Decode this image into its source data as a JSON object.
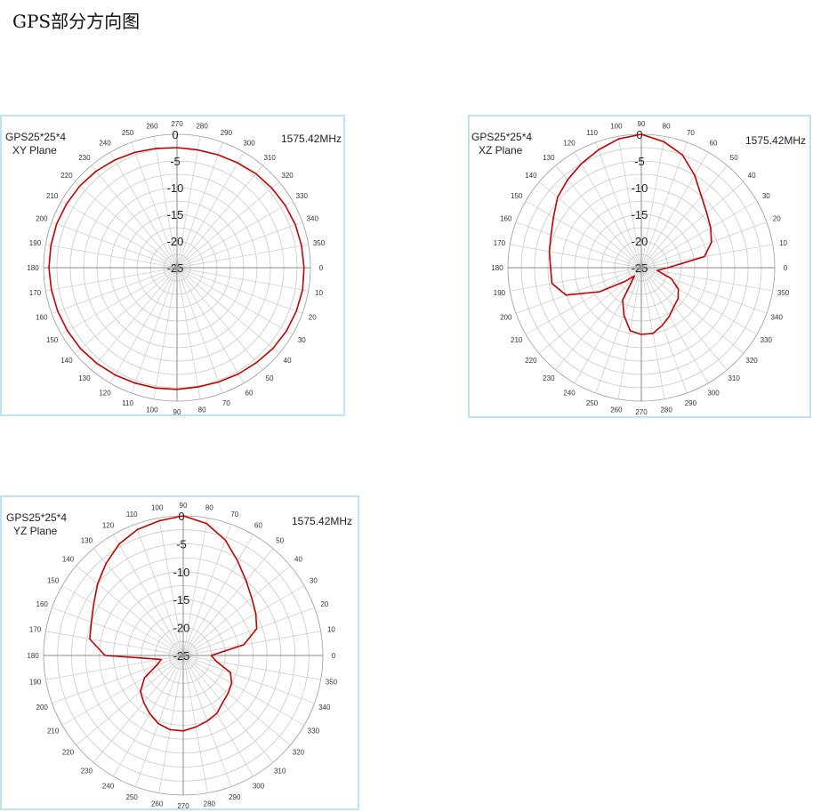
{
  "page_title": "GPS部分方向图",
  "chart_data": [
    {
      "type": "polar",
      "antenna": "GPS25*25*4",
      "plane": "XY Plane",
      "frequency": "1575.42MHz",
      "r_ticks": [
        "0",
        "-5",
        "-10",
        "-15",
        "-20",
        "-25"
      ],
      "r_lim": [
        -25,
        0
      ],
      "theta_ticks": [
        0,
        10,
        20,
        30,
        40,
        50,
        60,
        70,
        80,
        90,
        100,
        110,
        120,
        130,
        140,
        150,
        160,
        170,
        180,
        190,
        200,
        210,
        220,
        230,
        240,
        250,
        260,
        270,
        280,
        290,
        300,
        310,
        320,
        330,
        340,
        350
      ],
      "zero_position": "right",
      "direction": "clockwise",
      "grid": true,
      "line_color": "#c00000",
      "series": [
        {
          "theta": [
            0,
            10,
            20,
            30,
            40,
            50,
            60,
            70,
            80,
            90,
            100,
            110,
            120,
            130,
            140,
            150,
            160,
            170,
            180,
            190,
            200,
            210,
            220,
            230,
            240,
            250,
            260,
            270,
            280,
            290,
            300,
            310,
            320,
            330,
            340,
            350
          ],
          "r": [
            -1.2,
            -1.1,
            -1.2,
            -1.3,
            -1.5,
            -1.8,
            -2.0,
            -2.2,
            -2.3,
            -2.2,
            -2.1,
            -2.0,
            -1.8,
            -1.6,
            -1.4,
            -1.3,
            -1.2,
            -1.1,
            -1.0,
            -1.0,
            -1.0,
            -1.1,
            -1.2,
            -1.4,
            -1.7,
            -2.0,
            -2.3,
            -2.5,
            -2.6,
            -2.5,
            -2.3,
            -2.0,
            -1.8,
            -1.6,
            -1.4,
            -1.3
          ]
        }
      ]
    },
    {
      "type": "polar",
      "antenna": "GPS25*25*4",
      "plane": "XZ Plane",
      "frequency": "1575.42MHz",
      "r_ticks": [
        "0",
        "-5",
        "-10",
        "-15",
        "-20",
        "-25"
      ],
      "r_lim": [
        -25,
        0
      ],
      "theta_ticks": [
        0,
        10,
        20,
        30,
        40,
        50,
        60,
        70,
        80,
        90,
        100,
        110,
        120,
        130,
        140,
        150,
        160,
        170,
        180,
        190,
        200,
        210,
        220,
        230,
        240,
        250,
        260,
        270,
        280,
        290,
        300,
        310,
        320,
        330,
        340,
        350
      ],
      "zero_position": "right",
      "direction": "counterclockwise",
      "grid": true,
      "line_color": "#c00000",
      "series": [
        {
          "theta": [
            0,
            10,
            20,
            30,
            40,
            50,
            60,
            70,
            80,
            90,
            100,
            110,
            120,
            130,
            140,
            150,
            160,
            170,
            180,
            190,
            200,
            210,
            220,
            230,
            240,
            250,
            260,
            270,
            280,
            290,
            300,
            310,
            320,
            330,
            340,
            350
          ],
          "r": [
            -20,
            -13,
            -11,
            -10,
            -9,
            -7.5,
            -5,
            -2.5,
            -1,
            0,
            -0.5,
            -1.5,
            -2.5,
            -3.5,
            -4.5,
            -6,
            -7,
            -7.5,
            -8,
            -8,
            -10,
            -16,
            -21,
            -23,
            -18,
            -15.5,
            -13,
            -12.5,
            -12.5,
            -13.5,
            -14.5,
            -15.5,
            -16,
            -17,
            -19,
            -22
          ]
        }
      ]
    },
    {
      "type": "polar",
      "antenna": "GPS25*25*4",
      "plane": "YZ Plane",
      "frequency": "1575.42MHz",
      "r_ticks": [
        "0",
        "-5",
        "-10",
        "-15",
        "-20",
        "-25"
      ],
      "r_lim": [
        -25,
        0
      ],
      "theta_ticks": [
        0,
        10,
        20,
        30,
        40,
        50,
        60,
        70,
        80,
        90,
        100,
        110,
        120,
        130,
        140,
        150,
        160,
        170,
        180,
        190,
        200,
        210,
        220,
        230,
        240,
        250,
        260,
        270,
        280,
        290,
        300,
        310,
        320,
        330,
        340,
        350
      ],
      "zero_position": "right",
      "direction": "counterclockwise",
      "grid": true,
      "line_color": "#c00000",
      "series": [
        {
          "theta": [
            0,
            10,
            20,
            30,
            40,
            50,
            60,
            70,
            80,
            90,
            100,
            110,
            120,
            130,
            140,
            150,
            160,
            170,
            180,
            190,
            200,
            210,
            220,
            230,
            240,
            250,
            260,
            270,
            280,
            290,
            300,
            310,
            320,
            330,
            340,
            350
          ],
          "r": [
            -20,
            -14,
            -11,
            -10,
            -9,
            -7.5,
            -5.5,
            -3,
            -1,
            0,
            -0.5,
            -1,
            -2,
            -3.5,
            -5,
            -6.5,
            -7.5,
            -8,
            -11,
            -21,
            -20,
            -17,
            -15,
            -14,
            -13,
            -12,
            -11.5,
            -11.5,
            -12,
            -12.5,
            -13,
            -14,
            -14.5,
            -15,
            -16,
            -19
          ]
        }
      ]
    }
  ]
}
